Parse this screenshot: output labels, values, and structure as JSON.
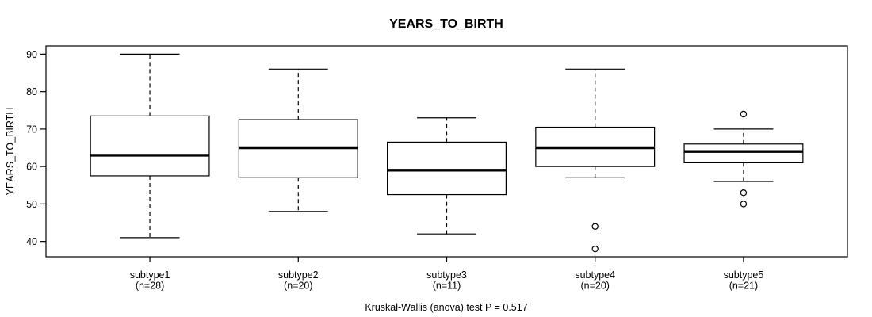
{
  "title": "YEARS_TO_BIRTH",
  "caption": "Kruskal-Wallis (anova) test P = 0.517",
  "axes": {
    "ylabel": "YEARS_TO_BIRTH",
    "yticks": [
      40,
      50,
      60,
      70,
      80,
      90
    ],
    "ylim": [
      35.9,
      92.2
    ]
  },
  "colors": {
    "line": "#000000",
    "background": "#ffffff",
    "box_fill": "#ffffff"
  },
  "chart_data": {
    "type": "boxplot",
    "title": "YEARS_TO_BIRTH",
    "ylabel": "YEARS_TO_BIRTH",
    "ylim": [
      35.9,
      92.2
    ],
    "yticks": [
      40,
      50,
      60,
      70,
      80,
      90
    ],
    "grid": false,
    "stat_note": "Kruskal-Wallis (anova) test P = 0.517",
    "groups": [
      {
        "label": "subtype1",
        "sublabel": "(n=28)",
        "n": 28,
        "whisker_low": 41,
        "q1": 57.5,
        "median": 63,
        "q3": 73.5,
        "whisker_high": 90,
        "outliers": []
      },
      {
        "label": "subtype2",
        "sublabel": "(n=20)",
        "n": 20,
        "whisker_low": 48,
        "q1": 57,
        "median": 65,
        "q3": 72.5,
        "whisker_high": 86,
        "outliers": []
      },
      {
        "label": "subtype3",
        "sublabel": "(n=11)",
        "n": 11,
        "whisker_low": 42,
        "q1": 52.5,
        "median": 59,
        "q3": 66.5,
        "whisker_high": 73,
        "outliers": []
      },
      {
        "label": "subtype4",
        "sublabel": "(n=20)",
        "n": 20,
        "whisker_low": 57,
        "q1": 60,
        "median": 65,
        "q3": 70.5,
        "whisker_high": 86,
        "outliers": [
          44,
          38
        ]
      },
      {
        "label": "subtype5",
        "sublabel": "(n=21)",
        "n": 21,
        "whisker_low": 56,
        "q1": 61,
        "median": 64,
        "q3": 66,
        "whisker_high": 70,
        "outliers": [
          74,
          53,
          50
        ]
      }
    ]
  }
}
